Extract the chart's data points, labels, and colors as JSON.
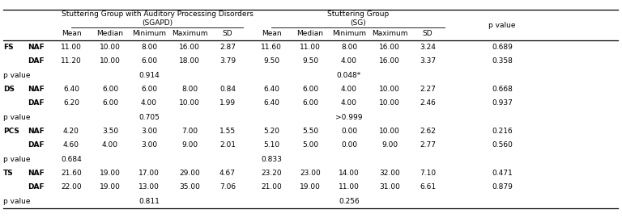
{
  "rows": [
    {
      "group": "FS",
      "sub": "NAF",
      "sgapd": [
        11.0,
        10.0,
        8.0,
        16.0,
        2.87
      ],
      "sg": [
        11.6,
        11.0,
        8.0,
        16.0,
        3.24
      ],
      "pval": "0.689"
    },
    {
      "group": "",
      "sub": "DAF",
      "sgapd": [
        11.2,
        10.0,
        6.0,
        18.0,
        3.79
      ],
      "sg": [
        9.5,
        9.5,
        4.0,
        16.0,
        3.37
      ],
      "pval": "0.358"
    },
    {
      "group": "pvalue",
      "sub": "",
      "sgapd_v": "0.914",
      "sgapd_col": "min",
      "sg_v": "0.048*",
      "sg_col": "min"
    },
    {
      "group": "DS",
      "sub": "NAF",
      "sgapd": [
        6.4,
        6.0,
        6.0,
        8.0,
        0.84
      ],
      "sg": [
        6.4,
        6.0,
        4.0,
        10.0,
        2.27
      ],
      "pval": "0.668"
    },
    {
      "group": "",
      "sub": "DAF",
      "sgapd": [
        6.2,
        6.0,
        4.0,
        10.0,
        1.99
      ],
      "sg": [
        6.4,
        6.0,
        4.0,
        10.0,
        2.46
      ],
      "pval": "0.937"
    },
    {
      "group": "pvalue",
      "sub": "",
      "sgapd_v": "0.705",
      "sgapd_col": "min",
      "sg_v": ">0.999",
      "sg_col": "min"
    },
    {
      "group": "PCS",
      "sub": "NAF",
      "sgapd": [
        4.2,
        3.5,
        3.0,
        7.0,
        1.55
      ],
      "sg": [
        5.2,
        5.5,
        0.0,
        10.0,
        2.62
      ],
      "pval": "0.216"
    },
    {
      "group": "",
      "sub": "DAF",
      "sgapd": [
        4.6,
        4.0,
        3.0,
        9.0,
        2.01
      ],
      "sg": [
        5.1,
        5.0,
        0.0,
        9.0,
        2.77
      ],
      "pval": "0.560"
    },
    {
      "group": "pvalue",
      "sub": "",
      "sgapd_v": "0.684",
      "sgapd_col": "mean",
      "sg_v": "0.833",
      "sg_col": "mean"
    },
    {
      "group": "TS",
      "sub": "NAF",
      "sgapd": [
        21.6,
        19.0,
        17.0,
        29.0,
        4.67
      ],
      "sg": [
        23.2,
        23.0,
        14.0,
        32.0,
        7.1
      ],
      "pval": "0.471"
    },
    {
      "group": "",
      "sub": "DAF",
      "sgapd": [
        22.0,
        19.0,
        13.0,
        35.0,
        7.06
      ],
      "sg": [
        21.0,
        19.0,
        11.0,
        31.0,
        6.61
      ],
      "pval": "0.879"
    },
    {
      "group": "pvalue",
      "sub": "",
      "sgapd_v": "0.811",
      "sgapd_col": "min",
      "sg_v": "0.256",
      "sg_col": "min"
    }
  ],
  "bg": "#ffffff"
}
